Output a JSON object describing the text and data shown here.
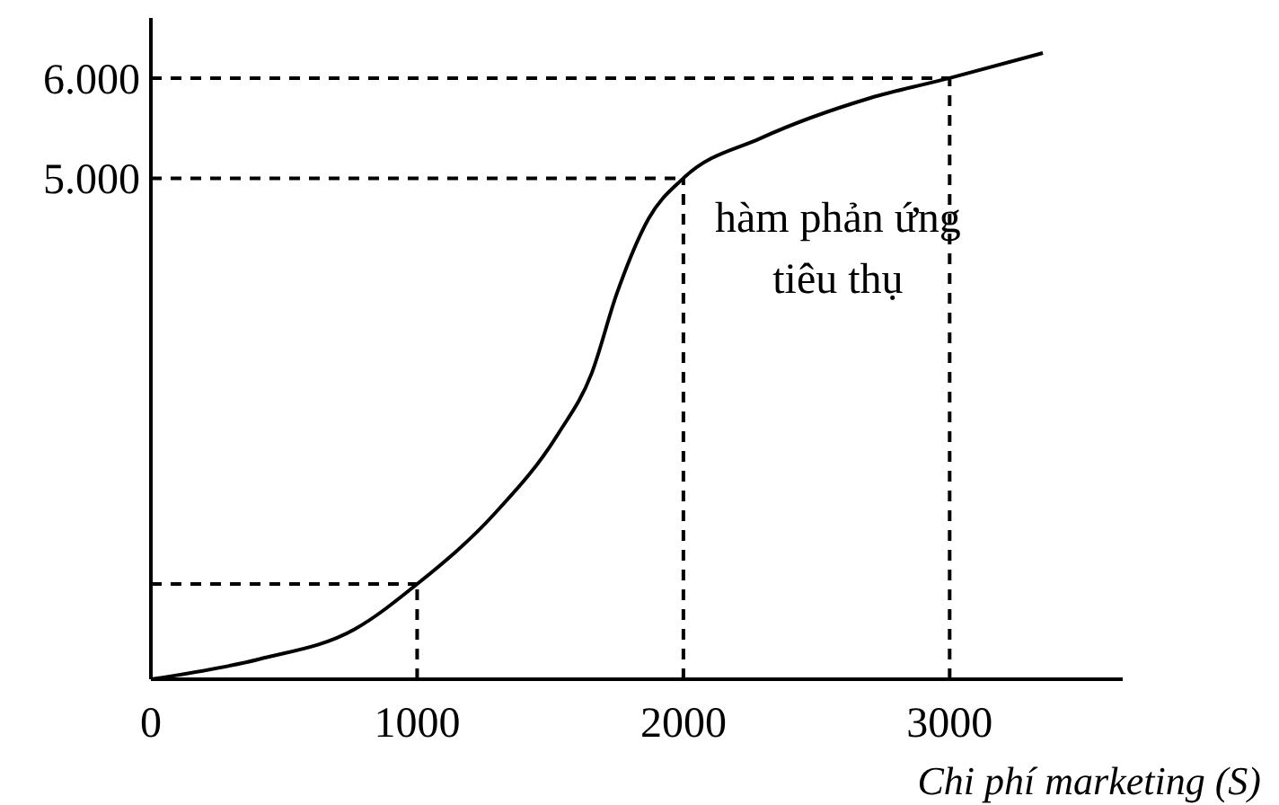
{
  "chart_data": {
    "type": "line",
    "xlabel": "Chi phí marketing (S)",
    "annotations": [
      "hàm phản ứng\ntiêu thụ"
    ],
    "x": [
      0,
      406,
      766,
      1000,
      1290,
      1530,
      1655,
      1750,
      1870,
      2000,
      2290,
      2700,
      3000,
      3350
    ],
    "series": [
      {
        "color": "#000000",
        "values": [
          0,
          200,
          500,
          950,
          1650,
          2450,
          3050,
          3850,
          4600,
          5000,
          5400,
          5800,
          6000,
          6250
        ]
      }
    ],
    "xlim": [
      0,
      3650
    ],
    "ylim": [
      0,
      6600
    ],
    "xticks": [
      0,
      1000,
      2000,
      3000
    ],
    "yticks": [
      {
        "value": 5000,
        "label": "5.000"
      },
      {
        "value": 6000,
        "label": "6.000"
      }
    ],
    "ref_lines": [
      {
        "axis": "y",
        "value": 950,
        "line_style": "dashed"
      },
      {
        "axis": "x",
        "value": 1000,
        "line_style": "dashed"
      },
      {
        "axis": "y",
        "value": 5000,
        "line_style": "dashed"
      },
      {
        "axis": "x",
        "value": 2000,
        "line_style": "dashed"
      },
      {
        "axis": "y",
        "value": 6000,
        "line_style": "dashed"
      },
      {
        "axis": "x",
        "value": 3000,
        "line_style": "dashed"
      }
    ],
    "grid": false,
    "line_style": "solid"
  }
}
